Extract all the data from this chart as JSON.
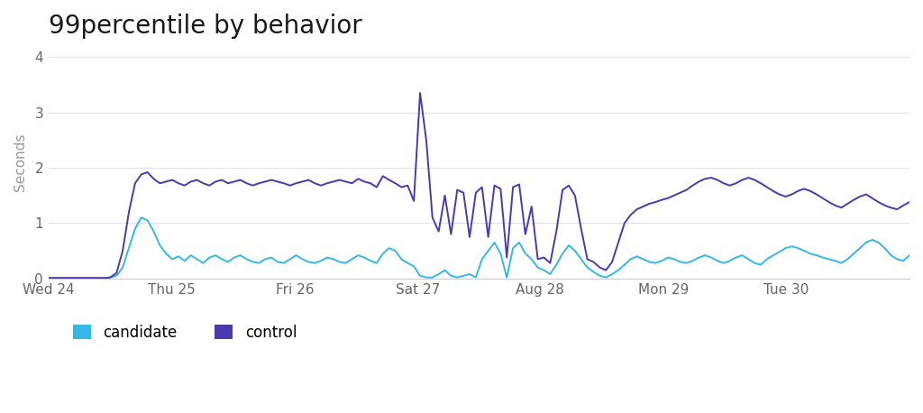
{
  "title": "99percentile by behavior",
  "ylabel": "Seconds",
  "ylim": [
    0,
    4.2
  ],
  "yticks": [
    0,
    1,
    2,
    3,
    4
  ],
  "background_color": "#ffffff",
  "title_fontsize": 20,
  "candidate_color": "#35b8e8",
  "control_color": "#4a3ab0",
  "legend_labels": [
    "candidate",
    "control"
  ],
  "x_tick_labels": [
    "Wed 24",
    "Thu 25",
    "Fri 26",
    "Sat 27",
    "Aug 28",
    "Mon 29",
    "Tue 30"
  ],
  "candidate": [
    0.01,
    0.01,
    0.01,
    0.01,
    0.01,
    0.01,
    0.01,
    0.01,
    0.01,
    0.01,
    0.02,
    0.05,
    0.2,
    0.55,
    0.9,
    1.1,
    1.05,
    0.85,
    0.6,
    0.45,
    0.35,
    0.4,
    0.32,
    0.42,
    0.35,
    0.28,
    0.38,
    0.42,
    0.35,
    0.3,
    0.38,
    0.42,
    0.35,
    0.3,
    0.28,
    0.35,
    0.38,
    0.3,
    0.28,
    0.35,
    0.42,
    0.35,
    0.3,
    0.28,
    0.32,
    0.38,
    0.35,
    0.3,
    0.28,
    0.35,
    0.42,
    0.38,
    0.32,
    0.28,
    0.45,
    0.55,
    0.5,
    0.35,
    0.28,
    0.22,
    0.05,
    0.02,
    0.02,
    0.08,
    0.15,
    0.05,
    0.02,
    0.05,
    0.08,
    0.02,
    0.35,
    0.5,
    0.65,
    0.45,
    0.02,
    0.55,
    0.65,
    0.45,
    0.35,
    0.2,
    0.15,
    0.08,
    0.25,
    0.45,
    0.6,
    0.5,
    0.35,
    0.2,
    0.12,
    0.05,
    0.02,
    0.08,
    0.15,
    0.25,
    0.35,
    0.4,
    0.35,
    0.3,
    0.28,
    0.32,
    0.38,
    0.35,
    0.3,
    0.28,
    0.32,
    0.38,
    0.42,
    0.38,
    0.32,
    0.28,
    0.32,
    0.38,
    0.42,
    0.35,
    0.28,
    0.25,
    0.35,
    0.42,
    0.48,
    0.55,
    0.58,
    0.55,
    0.5,
    0.45,
    0.42,
    0.38,
    0.35,
    0.32,
    0.28,
    0.35,
    0.45,
    0.55,
    0.65,
    0.7,
    0.65,
    0.55,
    0.42,
    0.35,
    0.32,
    0.42
  ],
  "control": [
    0.01,
    0.01,
    0.01,
    0.01,
    0.01,
    0.01,
    0.01,
    0.01,
    0.01,
    0.01,
    0.02,
    0.1,
    0.5,
    1.2,
    1.72,
    1.88,
    1.92,
    1.8,
    1.72,
    1.75,
    1.78,
    1.72,
    1.68,
    1.75,
    1.78,
    1.72,
    1.68,
    1.75,
    1.78,
    1.72,
    1.75,
    1.78,
    1.72,
    1.68,
    1.72,
    1.75,
    1.78,
    1.75,
    1.72,
    1.68,
    1.72,
    1.75,
    1.78,
    1.72,
    1.68,
    1.72,
    1.75,
    1.78,
    1.75,
    1.72,
    1.8,
    1.75,
    1.72,
    1.65,
    1.85,
    1.78,
    1.72,
    1.65,
    1.68,
    1.4,
    3.35,
    2.5,
    1.1,
    0.85,
    1.5,
    0.8,
    1.6,
    1.55,
    0.75,
    1.55,
    1.65,
    0.75,
    1.68,
    1.62,
    0.38,
    1.65,
    1.7,
    0.8,
    1.3,
    0.35,
    0.38,
    0.28,
    0.85,
    1.6,
    1.68,
    1.5,
    0.9,
    0.35,
    0.3,
    0.2,
    0.15,
    0.3,
    0.65,
    1.0,
    1.15,
    1.25,
    1.3,
    1.35,
    1.38,
    1.42,
    1.45,
    1.5,
    1.55,
    1.6,
    1.68,
    1.75,
    1.8,
    1.82,
    1.78,
    1.72,
    1.68,
    1.72,
    1.78,
    1.82,
    1.78,
    1.72,
    1.65,
    1.58,
    1.52,
    1.48,
    1.52,
    1.58,
    1.62,
    1.58,
    1.52,
    1.45,
    1.38,
    1.32,
    1.28,
    1.35,
    1.42,
    1.48,
    1.52,
    1.45,
    1.38,
    1.32,
    1.28,
    1.25,
    1.32,
    1.38
  ],
  "x_tick_positions_frac": [
    0.0,
    0.143,
    0.286,
    0.429,
    0.571,
    0.714,
    0.857
  ]
}
